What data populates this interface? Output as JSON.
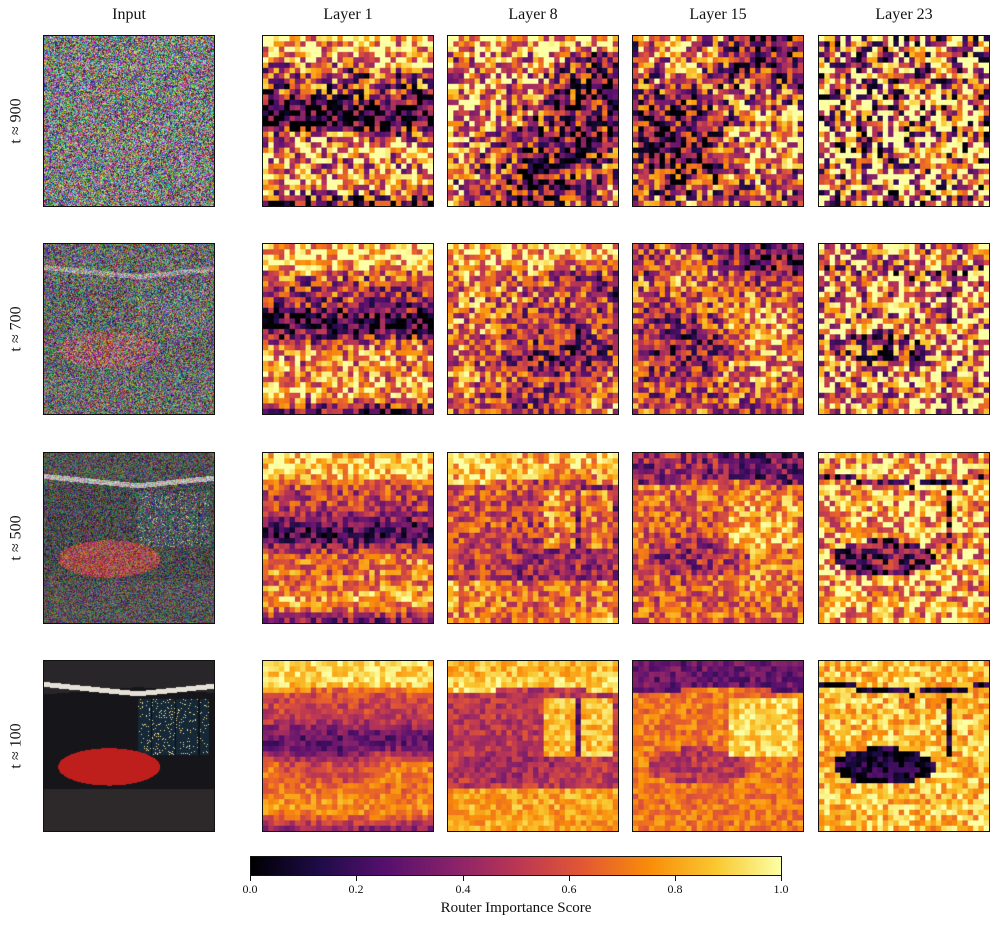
{
  "columns": [
    "Input",
    "Layer 1",
    "Layer 8",
    "Layer 15",
    "Layer 23"
  ],
  "rows": [
    "t ≈ 900",
    "t ≈ 700",
    "t ≈ 500",
    "t ≈ 100"
  ],
  "colorbar": {
    "label": "Router Importance Score",
    "ticks": [
      "0.0",
      "0.2",
      "0.4",
      "0.6",
      "0.8",
      "1.0"
    ],
    "range": [
      0.0,
      1.0
    ],
    "colormap": "inferno"
  },
  "panels": {
    "input_subject": "red sports car in dark room with city-view windows, increasingly noisy at higher t",
    "heatmap_grid": "32x32 patches"
  }
}
